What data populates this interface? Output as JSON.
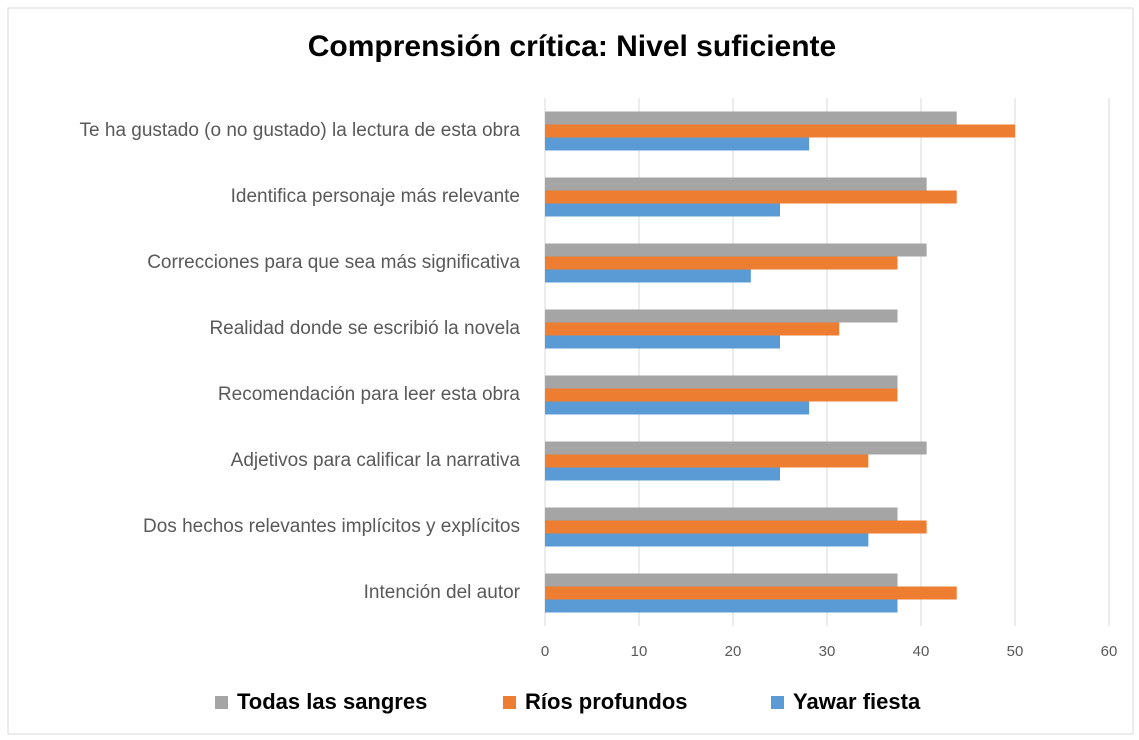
{
  "chart_data": {
    "type": "bar",
    "orientation": "horizontal",
    "title": "Comprensión crítica: Nivel suficiente",
    "categories": [
      "Te ha gustado (o no gustado) la lectura de esta obra",
      "Identifica personaje más relevante",
      "Correcciones para que sea más significativa",
      "Realidad donde se escribió la novela",
      "Recomendación para leer esta obra",
      "Adjetivos para calificar la narrativa",
      "Dos hechos relevantes implícitos y explícitos",
      "Intención del autor"
    ],
    "series": [
      {
        "name": "Todas las sangres",
        "color": "#a5a5a5",
        "values": [
          43.8,
          40.6,
          40.6,
          37.5,
          37.5,
          40.6,
          37.5,
          37.5
        ]
      },
      {
        "name": "Ríos profundos",
        "color": "#ed7d31",
        "values": [
          50,
          43.8,
          37.5,
          31.3,
          37.5,
          34.4,
          40.6,
          43.8
        ]
      },
      {
        "name": "Yawar fiesta",
        "color": "#5b9bd5",
        "values": [
          28.1,
          25,
          21.9,
          25,
          28.1,
          25,
          34.4,
          37.5
        ]
      }
    ],
    "xlim": [
      0,
      60
    ],
    "xticks": [
      0,
      10,
      20,
      30,
      40,
      50,
      60
    ],
    "grid": true,
    "legend": "bottom"
  }
}
